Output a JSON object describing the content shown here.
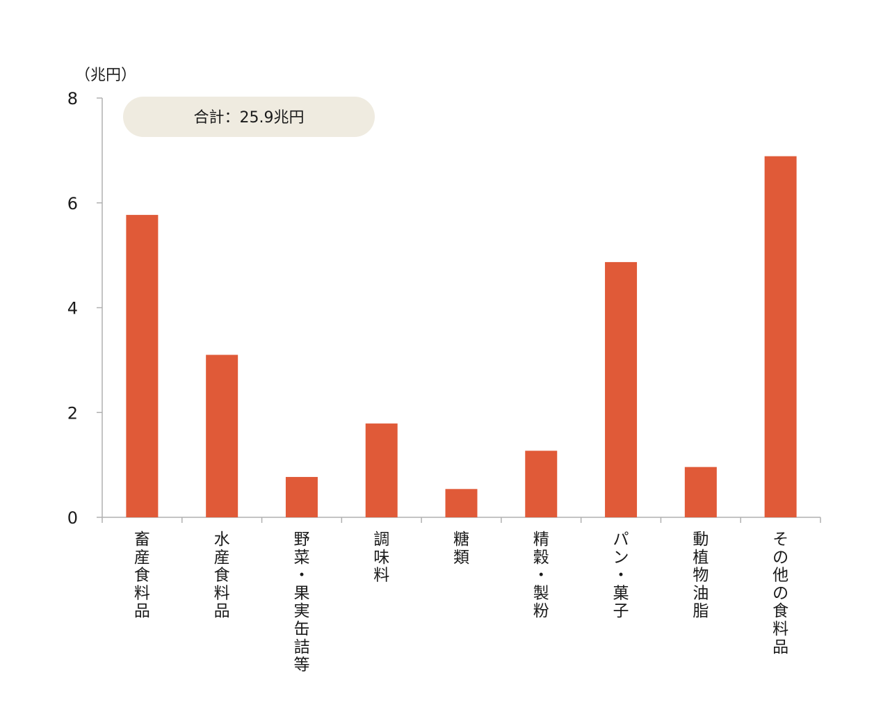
{
  "chart_data": {
    "type": "bar",
    "unit_label": "（兆円）",
    "annotation": "合計：25.9兆円",
    "categories": [
      "畜産食料品",
      "水産食料品",
      "野菜・果実缶詰等",
      "調味料",
      "糖類",
      "精穀・製粉",
      "パン・菓子",
      "動植物油脂",
      "その他の食料品"
    ],
    "values": [
      5.77,
      3.1,
      0.77,
      1.79,
      0.54,
      1.27,
      4.87,
      0.96,
      6.89
    ],
    "yticks": [
      "0",
      "2",
      "4",
      "6",
      "8"
    ],
    "ylim": [
      0,
      8
    ],
    "grid": false,
    "legend": "none",
    "bar_color": "#e05a38",
    "annotation_bg": "#efebe0",
    "axis_color": "#b0b0b0"
  }
}
